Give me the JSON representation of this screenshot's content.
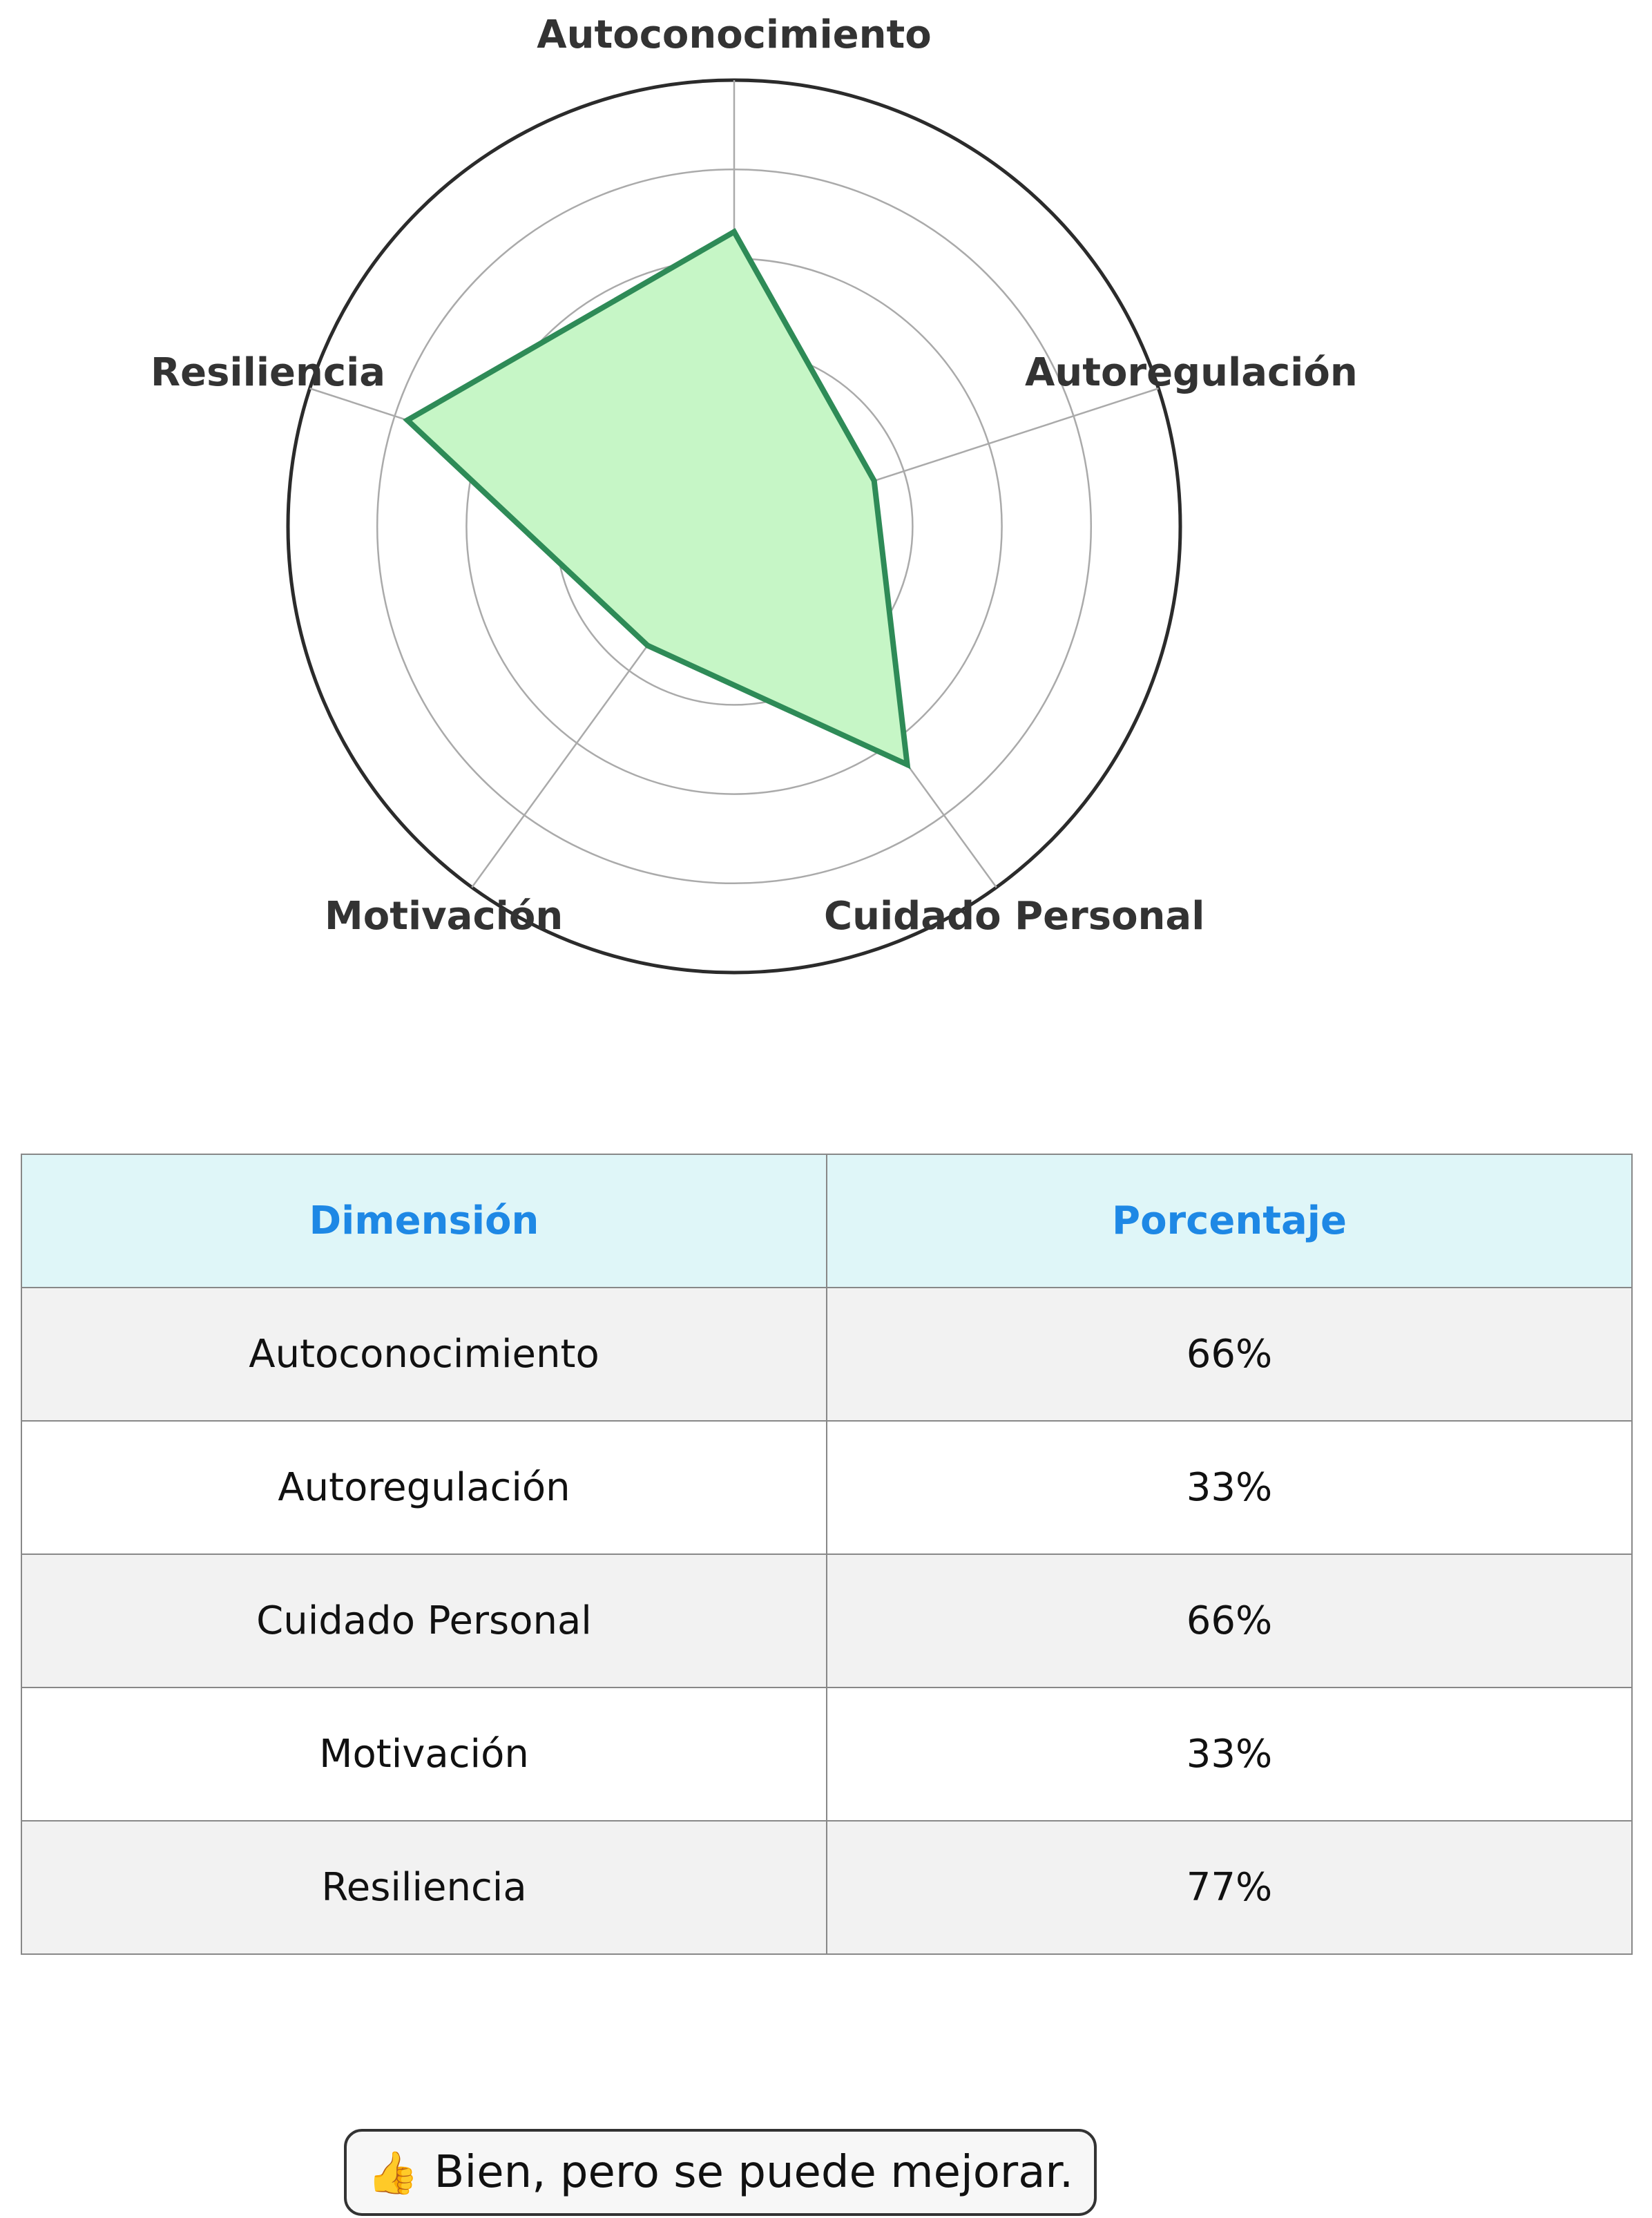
{
  "chart_data": {
    "type": "radar",
    "axes": [
      "Autoconocimiento",
      "Autoregulación",
      "Cuidado Personal",
      "Motivación",
      "Resiliencia"
    ],
    "values": [
      66,
      33,
      66,
      33,
      77
    ],
    "rlim": [
      0,
      100
    ],
    "rings": [
      20,
      40,
      60,
      80,
      100
    ],
    "grid": true,
    "colors": {
      "line": "#2e8b57",
      "fill": "#c6f6c6",
      "grid": "#aaaaaa",
      "outer": "#2b2b2b"
    }
  },
  "table": {
    "headers": [
      "Dimensión",
      "Porcentaje"
    ],
    "rows": [
      [
        "Autoconocimiento",
        "66%"
      ],
      [
        "Autoregulación",
        "33%"
      ],
      [
        "Cuidado Personal",
        "66%"
      ],
      [
        "Motivación",
        "33%"
      ],
      [
        "Resiliencia",
        "77%"
      ]
    ],
    "header_color": "#1e88e5",
    "header_bg": "#dff6f8"
  },
  "feedback": {
    "icon": "thumbs-up-icon",
    "glyph": "👍",
    "text": "Bien, pero se puede mejorar."
  }
}
